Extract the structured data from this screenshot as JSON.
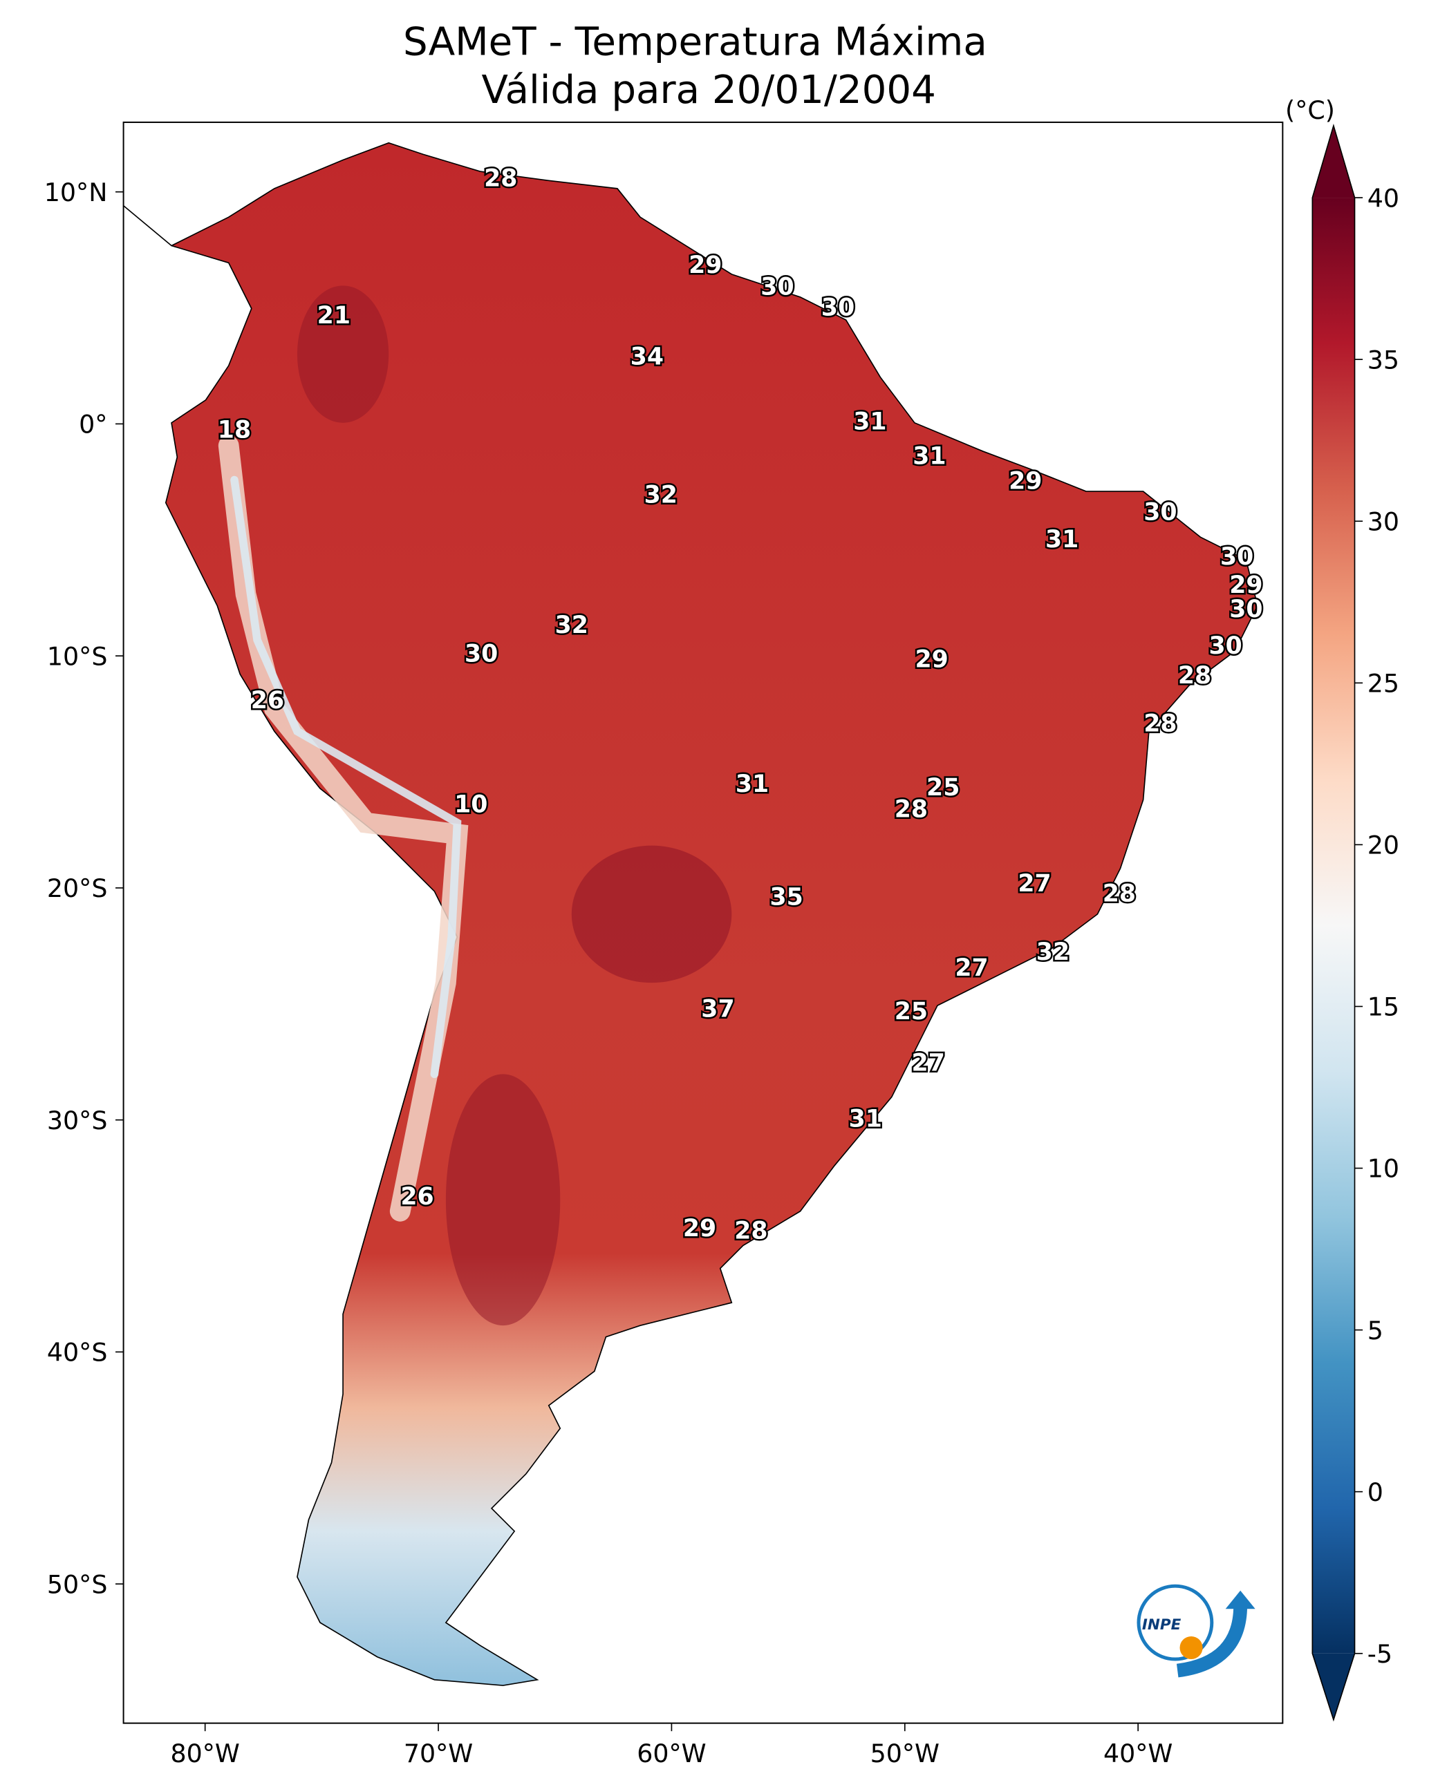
{
  "chart_data": {
    "type": "map",
    "title": "SAMeT - Temperatura Máxima",
    "subtitle": "Válida para 20/01/2004",
    "xlim": [
      -83.5,
      -33.8
    ],
    "ylim": [
      -56,
      13
    ],
    "xticks": [
      {
        "value": -80,
        "label": "80°W"
      },
      {
        "value": -70,
        "label": "70°W"
      },
      {
        "value": -60,
        "label": "60°W"
      },
      {
        "value": -50,
        "label": "50°W"
      },
      {
        "value": -40,
        "label": "40°W"
      }
    ],
    "yticks": [
      {
        "value": 10,
        "label": "10°N"
      },
      {
        "value": 0,
        "label": "0°"
      },
      {
        "value": -10,
        "label": "10°S"
      },
      {
        "value": -20,
        "label": "20°S"
      },
      {
        "value": -30,
        "label": "30°S"
      },
      {
        "value": -40,
        "label": "40°S"
      },
      {
        "value": -50,
        "label": "50°S"
      }
    ],
    "colorbar": {
      "label": "(°C)",
      "lim": [
        -5,
        40
      ],
      "ticks": [
        -5,
        0,
        5,
        10,
        15,
        20,
        25,
        30,
        35,
        40
      ],
      "colors": [
        "#053061",
        "#2166ac",
        "#4393c3",
        "#92c5de",
        "#d1e5f0",
        "#f7f7f7",
        "#fddbc7",
        "#f4a582",
        "#d6604d",
        "#b2182b",
        "#67001f"
      ]
    },
    "temperature_labels": [
      28,
      29,
      30,
      30,
      21,
      34,
      18,
      31,
      31,
      29,
      32,
      30,
      31,
      30,
      29,
      30,
      32,
      30,
      29,
      30,
      28,
      26,
      28,
      31,
      25,
      10,
      28,
      27,
      35,
      28,
      32,
      27,
      37,
      25,
      27,
      31,
      26,
      29,
      28
    ],
    "logo_text": "INPE"
  }
}
